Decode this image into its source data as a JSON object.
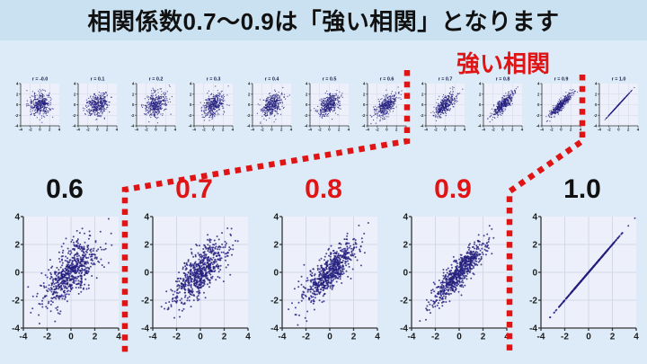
{
  "page": {
    "title": "相関係数0.7〜0.9は「強い相関」となります",
    "background": "#dcebf7",
    "title_bar_bg": "#c9e1f0",
    "title_color": "#111111"
  },
  "annotation": {
    "strong_label": "強い相関",
    "accent_red": "#e01414"
  },
  "chart_data": [
    {
      "type": "scatter",
      "group": "top-small-multiples",
      "description": "Row of 11 small scatter plots of bivariate normal samples, one per correlation coefficient",
      "xlim": [
        -4,
        4
      ],
      "ylim": [
        -4,
        4
      ],
      "ticks": [
        -4,
        -2,
        0,
        2,
        4
      ],
      "grid": true,
      "n_points": 400,
      "point_color": "#241e7e",
      "plots": [
        {
          "title": "r = -0.0",
          "r": 0.0
        },
        {
          "title": "r = 0.1",
          "r": 0.1
        },
        {
          "title": "r = 0.2",
          "r": 0.2
        },
        {
          "title": "r = 0.3",
          "r": 0.3
        },
        {
          "title": "r = 0.4",
          "r": 0.4
        },
        {
          "title": "r = 0.5",
          "r": 0.5
        },
        {
          "title": "r = 0.6",
          "r": 0.6
        },
        {
          "title": "r = 0.7",
          "r": 0.7
        },
        {
          "title": "r = 0.8",
          "r": 0.8
        },
        {
          "title": "r = 0.9",
          "r": 0.9
        },
        {
          "title": "r = 1.0",
          "r": 1.0
        }
      ]
    },
    {
      "type": "scatter",
      "group": "bottom-large",
      "description": "Five enlarged scatter plots for r = 0.6 to 1.0; labels 0.7-0.9 highlighted in red",
      "xlim": [
        -4,
        4
      ],
      "ylim": [
        -4,
        4
      ],
      "ticks": [
        -4,
        -2,
        0,
        2,
        4
      ],
      "grid": true,
      "n_points": 650,
      "point_color": "#241e7e",
      "plots": [
        {
          "label": "0.6",
          "r": 0.6,
          "label_color": "#111111"
        },
        {
          "label": "0.7",
          "r": 0.7,
          "label_color": "#e01414"
        },
        {
          "label": "0.8",
          "r": 0.8,
          "label_color": "#e01414"
        },
        {
          "label": "0.9",
          "r": 0.9,
          "label_color": "#e01414"
        },
        {
          "label": "1.0",
          "r": 1.0,
          "label_color": "#111111"
        }
      ]
    }
  ]
}
